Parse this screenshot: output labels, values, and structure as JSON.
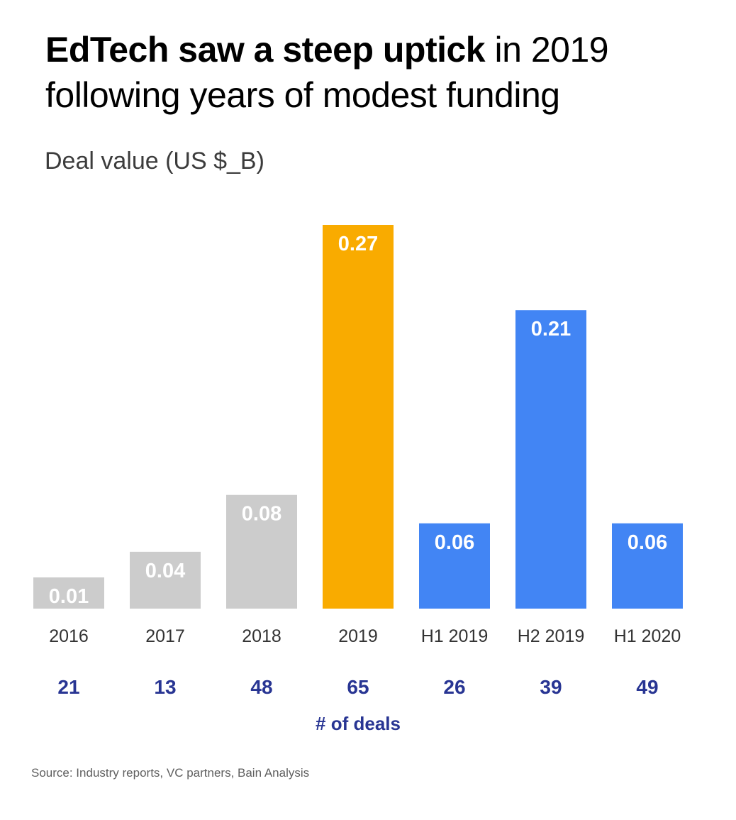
{
  "title_bold": "EdTech saw a steep uptick",
  "title_rest": " in 2019 following years of modest funding",
  "subtitle": "Deal value (US $_B)",
  "source": "Source: Industry reports, VC partners, Bain Analysis",
  "colors": {
    "gray": "#cccccc",
    "orange": "#f9ab00",
    "blue": "#4285f4",
    "deals": "#283593",
    "axis_label": "#333333"
  },
  "chart_data": {
    "type": "bar",
    "categories": [
      "2016",
      "2017",
      "2018",
      "2019",
      "H1 2019",
      "H2 2019",
      "H1 2020"
    ],
    "values": [
      0.01,
      0.04,
      0.08,
      0.27,
      0.06,
      0.21,
      0.06
    ],
    "value_labels": [
      "0.01",
      "0.04",
      "0.08",
      "0.27",
      "0.06",
      "0.21",
      "0.06"
    ],
    "bar_colors": [
      "gray",
      "gray",
      "gray",
      "orange",
      "blue",
      "blue",
      "blue"
    ],
    "deal_counts": [
      "21",
      "13",
      "48",
      "65",
      "26",
      "39",
      "49"
    ],
    "deals_label": "# of deals",
    "ylabel": "Deal value (US $_B)",
    "ylim": [
      0,
      0.27
    ],
    "grid": false,
    "legend": "none"
  }
}
